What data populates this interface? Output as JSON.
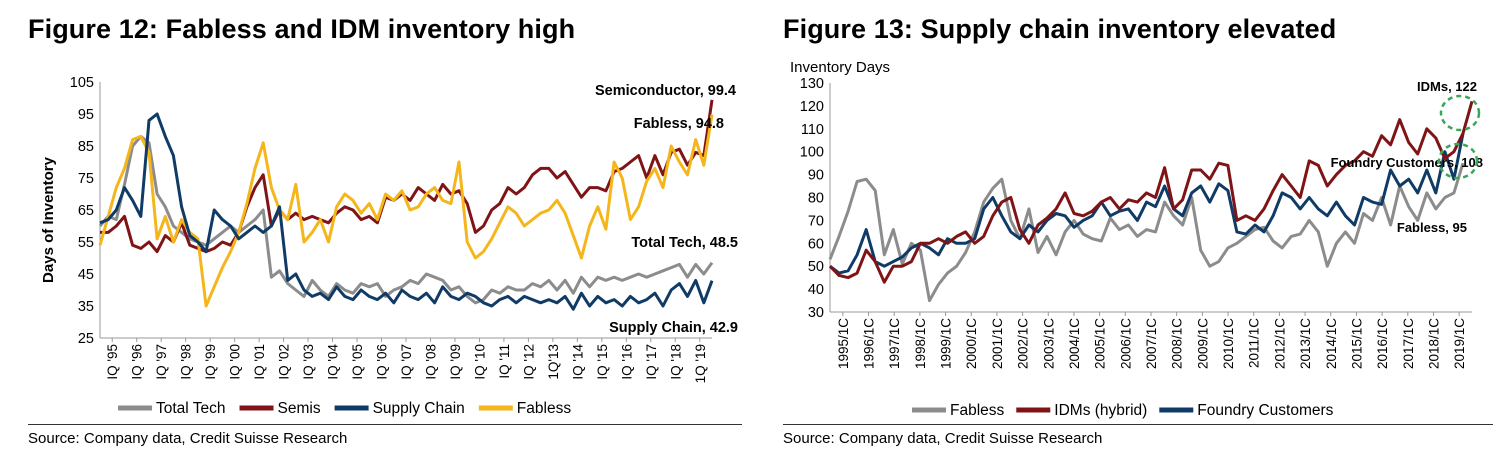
{
  "figure12": {
    "title": "Figure 12: Fabless and IDM inventory high",
    "source": "Source: Company data, Credit Suisse Research",
    "chart_data": {
      "type": "line",
      "ylabel": "Days of Inventory",
      "ylim": [
        25,
        105
      ],
      "yticks": [
        25,
        35,
        45,
        55,
        65,
        75,
        85,
        95,
        105
      ],
      "xticks": [
        "IQ '95",
        "IQ '96",
        "IQ '97",
        "IQ '98",
        "IQ '99",
        "IQ '00",
        "IQ '01",
        "IQ '02",
        "IQ '03",
        "IQ '04",
        "IQ '05",
        "IQ '06",
        "IQ '07",
        "IQ '08",
        "IQ '09",
        "IQ '10",
        "IQ '11",
        "IQ '12",
        "1Q'13",
        "IQ '14",
        "IQ '15",
        "IQ '16",
        "IQ '17",
        "IQ '18",
        "1Q '19"
      ],
      "annotations": [
        "Semiconductor, 99.4",
        "Fabless, 94.8",
        "Total Tech, 48.5",
        "Supply Chain, 42.9"
      ],
      "legend": [
        "Total Tech",
        "Semis",
        "Supply Chain",
        "Fabless"
      ],
      "series": [
        {
          "name": "Total Tech",
          "color": "#8c8c8c",
          "values": [
            60,
            63,
            62,
            73,
            85,
            88,
            86,
            70,
            66,
            60,
            58,
            56,
            55,
            54,
            56,
            58,
            60,
            58,
            60,
            62,
            65,
            44,
            46,
            42,
            40,
            38,
            43,
            40,
            38,
            42,
            40,
            39,
            42,
            41,
            42,
            38,
            40,
            41,
            43,
            42,
            45,
            44,
            43,
            40,
            41,
            38,
            36,
            37,
            40,
            39,
            41,
            40,
            40,
            42,
            41,
            43,
            40,
            43,
            39,
            44,
            41,
            44,
            43,
            44,
            43,
            44,
            45,
            44,
            45,
            46,
            47,
            48,
            44,
            48,
            45,
            48.5
          ]
        },
        {
          "name": "Semis",
          "color": "#7f1416",
          "values": [
            58,
            58,
            60,
            63,
            54,
            53,
            55,
            52,
            57,
            55,
            61,
            54,
            53,
            52,
            53,
            55,
            54,
            58,
            66,
            72,
            76,
            60,
            65,
            62,
            64,
            62,
            63,
            62,
            61,
            64,
            66,
            65,
            62,
            63,
            61,
            69,
            68,
            70,
            68,
            72,
            70,
            68,
            73,
            70,
            71,
            67,
            58,
            60,
            65,
            67,
            72,
            70,
            72,
            76,
            78,
            78,
            75,
            77,
            73,
            69,
            72,
            72,
            71,
            77,
            78,
            80,
            82,
            75,
            82,
            76,
            83,
            84,
            79,
            83,
            82,
            99.4
          ]
        },
        {
          "name": "Supply Chain",
          "color": "#0f3b66",
          "values": [
            61,
            62,
            65,
            72,
            68,
            63,
            93,
            95,
            88,
            82,
            66,
            57,
            55,
            52,
            65,
            62,
            60,
            56,
            58,
            60,
            58,
            60,
            66,
            43,
            45,
            40,
            38,
            39,
            37,
            41,
            38,
            37,
            40,
            38,
            37,
            39,
            36,
            40,
            38,
            37,
            39,
            36,
            41,
            38,
            37,
            39,
            38,
            36,
            35,
            37,
            38,
            36,
            38,
            37,
            36,
            37,
            36,
            38,
            34,
            39,
            35,
            38,
            36,
            37,
            35,
            38,
            36,
            37,
            39,
            35,
            40,
            42,
            38,
            43,
            36,
            42.9
          ]
        },
        {
          "name": "Fabless",
          "color": "#f5b61c",
          "values": [
            54,
            63,
            72,
            78,
            87,
            88,
            83,
            56,
            63,
            55,
            62,
            58,
            56,
            35,
            41,
            47,
            52,
            58,
            67,
            78,
            86,
            72,
            65,
            62,
            73,
            55,
            58,
            62,
            55,
            66,
            70,
            68,
            64,
            67,
            62,
            70,
            68,
            71,
            65,
            66,
            70,
            72,
            68,
            67,
            80,
            55,
            50,
            52,
            56,
            61,
            66,
            64,
            60,
            62,
            64,
            65,
            68,
            64,
            57,
            50,
            60,
            66,
            59,
            80,
            75,
            62,
            66,
            74,
            78,
            72,
            85,
            80,
            76,
            87,
            79,
            94.8
          ]
        }
      ]
    },
    "legend_labels": [
      "Total Tech",
      "Semis",
      "Supply Chain",
      "Fabless"
    ]
  },
  "figure13": {
    "title": "Figure 13: Supply chain inventory elevated",
    "source": "Source: Company data, Credit Suisse Research",
    "chart_data": {
      "type": "line",
      "ylabel": "Inventory Days",
      "ylim": [
        30,
        130
      ],
      "yticks": [
        30,
        40,
        50,
        60,
        70,
        80,
        90,
        100,
        110,
        120,
        130
      ],
      "xticks": [
        "1995/1C",
        "1996/1C",
        "1997/1C",
        "1998/1C",
        "1999/1C",
        "2000/1C",
        "2001/1C",
        "2002/1C",
        "2003/1C",
        "2004/1C",
        "2005/1C",
        "2006/1C",
        "2007/1C",
        "2008/1C",
        "2009/1C",
        "2010/1C",
        "2011/1C",
        "2012/1C",
        "2013/1C",
        "2014/1C",
        "2015/1C",
        "2016/1C",
        "2017/1C",
        "2018/1C",
        "2019/1C"
      ],
      "annotations": [
        "IDMs, 122",
        "Foundry Customers, 108",
        "Fabless, 95"
      ],
      "legend": [
        "Fabless",
        "IDMs (hybrid)",
        "Foundry Customers"
      ],
      "series": [
        {
          "name": "Fabless",
          "color": "#8c8c8c",
          "values": [
            53,
            63,
            74,
            87,
            88,
            83,
            55,
            66,
            51,
            60,
            57,
            35,
            42,
            47,
            50,
            56,
            65,
            78,
            84,
            88,
            70,
            62,
            75,
            56,
            63,
            55,
            65,
            70,
            64,
            62,
            61,
            71,
            66,
            68,
            63,
            66,
            65,
            78,
            72,
            68,
            80,
            57,
            50,
            52,
            58,
            60,
            63,
            66,
            67,
            61,
            58,
            63,
            64,
            70,
            65,
            50,
            60,
            65,
            60,
            73,
            70,
            80,
            68,
            85,
            76,
            70,
            82,
            75,
            80,
            82,
            95
          ]
        },
        {
          "name": "IDMs (hybrid)",
          "color": "#7f1416",
          "values": [
            50,
            46,
            45,
            47,
            57,
            52,
            43,
            50,
            50,
            52,
            60,
            60,
            62,
            60,
            63,
            65,
            60,
            63,
            72,
            78,
            80,
            66,
            60,
            68,
            71,
            75,
            82,
            73,
            72,
            74,
            78,
            80,
            75,
            79,
            78,
            82,
            80,
            93,
            75,
            79,
            92,
            92,
            88,
            95,
            94,
            70,
            72,
            70,
            75,
            83,
            90,
            85,
            80,
            96,
            94,
            85,
            90,
            94,
            96,
            100,
            98,
            107,
            103,
            114,
            104,
            99,
            110,
            106,
            97,
            100,
            108,
            122
          ]
        },
        {
          "name": "Foundry Customers",
          "color": "#0f3b66",
          "values": [
            50,
            47,
            48,
            55,
            66,
            52,
            50,
            52,
            54,
            58,
            60,
            58,
            55,
            62,
            60,
            60,
            62,
            75,
            80,
            72,
            65,
            62,
            68,
            65,
            70,
            73,
            72,
            67,
            70,
            72,
            78,
            72,
            74,
            75,
            70,
            78,
            76,
            85,
            75,
            72,
            82,
            85,
            78,
            86,
            83,
            65,
            64,
            68,
            65,
            72,
            82,
            80,
            75,
            80,
            75,
            72,
            78,
            72,
            68,
            80,
            78,
            77,
            92,
            85,
            88,
            82,
            92,
            82,
            100,
            88,
            108
          ]
        }
      ]
    },
    "legend_labels": [
      "Fabless",
      "IDMs (hybrid)",
      "Foundry Customers"
    ]
  }
}
